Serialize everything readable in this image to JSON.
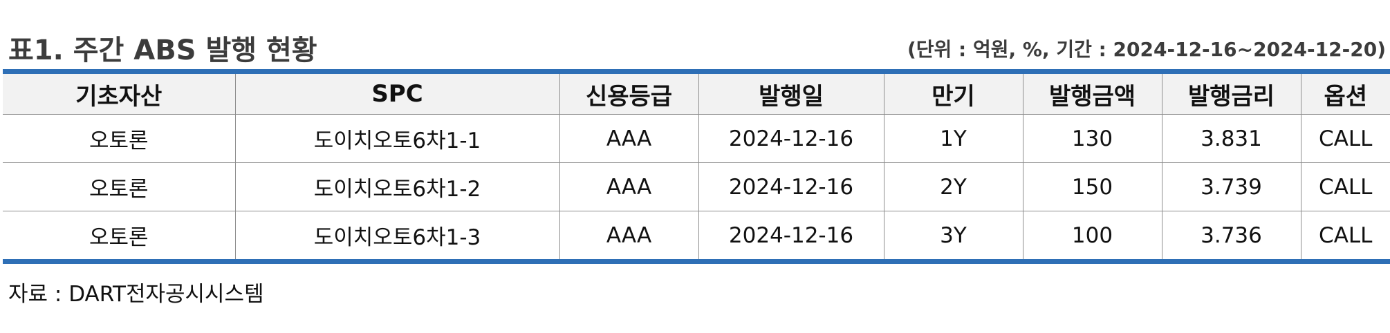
{
  "header": {
    "title": "표1. 주간 ABS 발행 현황",
    "unit_note": "(단위 : 억원, %, 기간 : 2024-12-16~2024-12-20)"
  },
  "table": {
    "columns": [
      "기초자산",
      "SPC",
      "신용등급",
      "발행일",
      "만기",
      "발행금액",
      "발행금리",
      "옵션"
    ],
    "rows": [
      [
        "오토론",
        "도이치오토6차1-1",
        "AAA",
        "2024-12-16",
        "1Y",
        "130",
        "3.831",
        "CALL"
      ],
      [
        "오토론",
        "도이치오토6차1-2",
        "AAA",
        "2024-12-16",
        "2Y",
        "150",
        "3.739",
        "CALL"
      ],
      [
        "오토론",
        "도이치오토6차1-3",
        "AAA",
        "2024-12-16",
        "3Y",
        "100",
        "3.736",
        "CALL"
      ]
    ]
  },
  "footer": {
    "source": "자료 : DART전자공시시스템"
  },
  "colors": {
    "accent_rule": "#2e6fb6",
    "header_bg": "#f2f2f2",
    "title_text": "#3c3c3c"
  }
}
